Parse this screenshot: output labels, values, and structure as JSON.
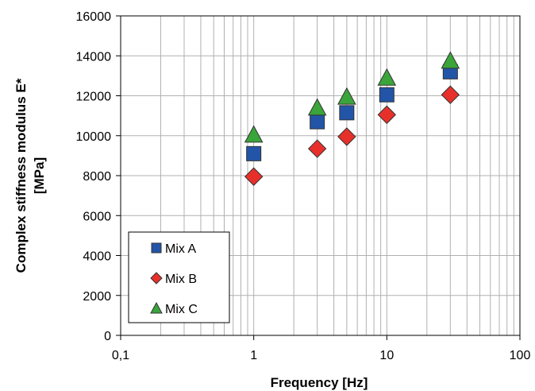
{
  "chart_data": {
    "type": "scatter",
    "xlabel": "Frequency [Hz]",
    "ylabel_line1": "Complex stiffness modulus E*",
    "ylabel_line2": "[MPa]",
    "xscale": "log",
    "xlim": [
      0.1,
      100
    ],
    "ylim": [
      0,
      16000
    ],
    "x_ticks": [
      0.1,
      1,
      10,
      100
    ],
    "x_tick_labels": [
      "0,1",
      "1",
      "10",
      "100"
    ],
    "y_ticks": [
      0,
      2000,
      4000,
      6000,
      8000,
      10000,
      12000,
      14000,
      16000
    ],
    "y_tick_labels": [
      "0",
      "2000",
      "4000",
      "6000",
      "8000",
      "10000",
      "12000",
      "14000",
      "16000"
    ],
    "grid": true,
    "legend_position": "bottom-left",
    "series": [
      {
        "name": "Mix A",
        "marker": "square",
        "color": "#2255a8",
        "x": [
          1,
          3,
          5,
          10,
          30
        ],
        "y": [
          9100,
          10700,
          11150,
          12050,
          13200
        ]
      },
      {
        "name": "Mix B",
        "marker": "diamond",
        "color": "#e8302a",
        "x": [
          1,
          3,
          5,
          10,
          30
        ],
        "y": [
          7950,
          9350,
          9950,
          11050,
          12050
        ]
      },
      {
        "name": "Mix C",
        "marker": "triangle",
        "color": "#3aa53a",
        "x": [
          1,
          3,
          5,
          10,
          30
        ],
        "y": [
          10050,
          11400,
          11950,
          12900,
          13750
        ]
      }
    ]
  }
}
